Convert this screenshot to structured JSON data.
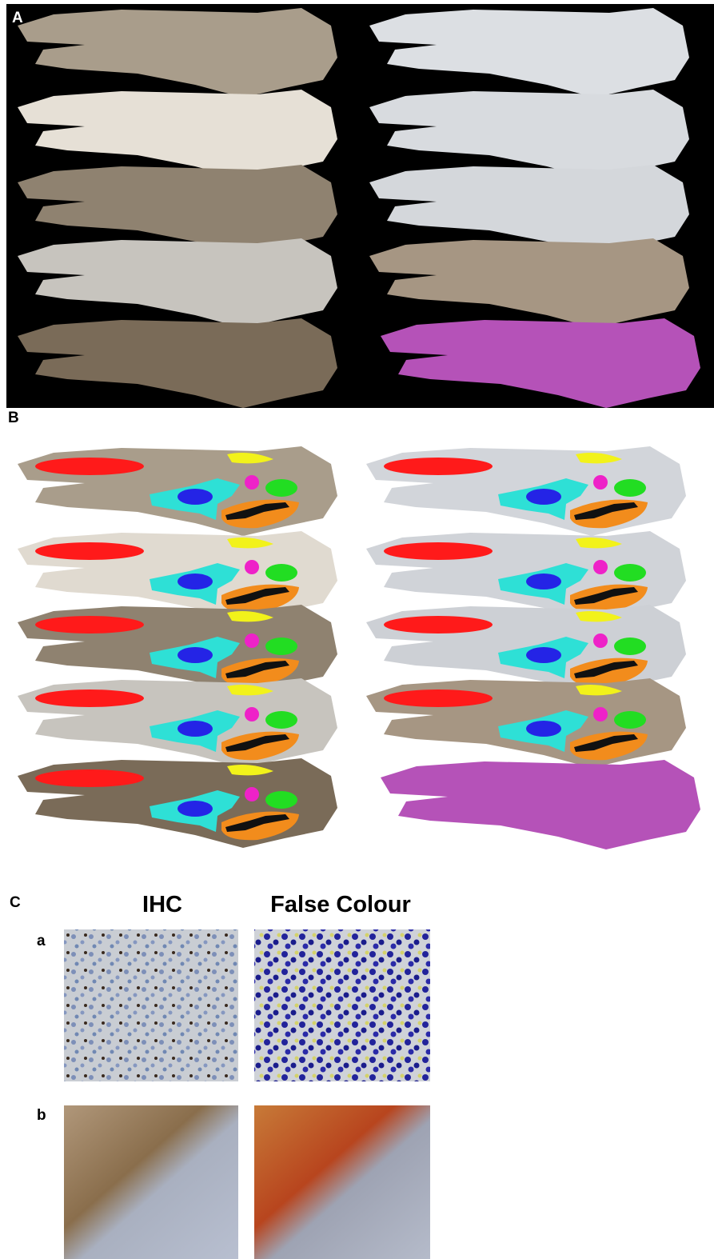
{
  "panels": [
    {
      "label": "A"
    },
    {
      "label": "B"
    },
    {
      "label": "C",
      "columns": [
        "IHC",
        "False Colour"
      ],
      "rows": [
        "a",
        "b"
      ]
    }
  ]
}
